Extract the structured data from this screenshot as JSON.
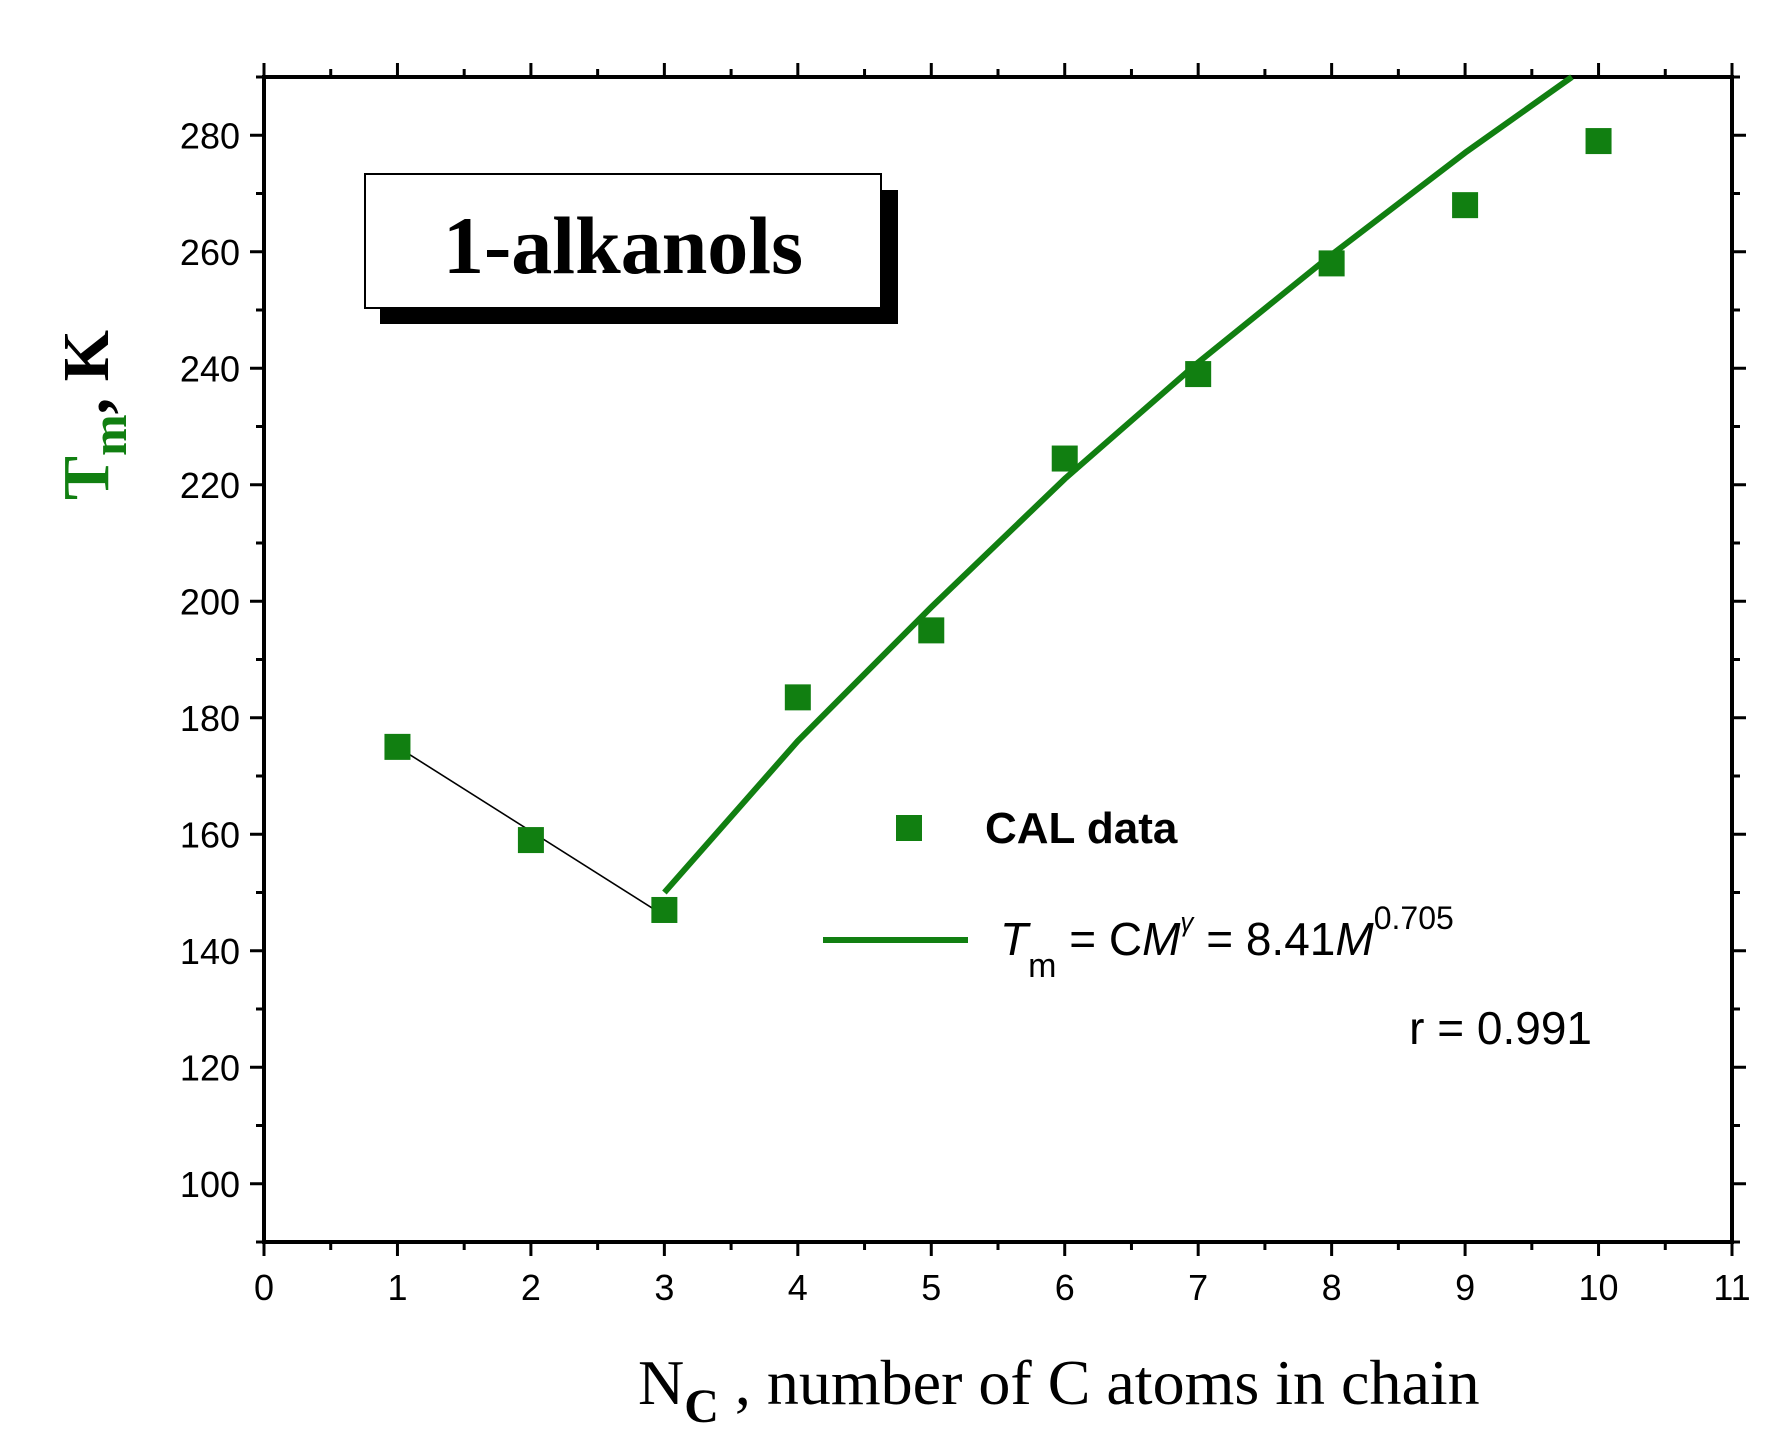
{
  "chart_data": {
    "type": "scatter",
    "title_box": "1-alkanols",
    "xlabel": {
      "main": "N",
      "sub": "C",
      "rest": " , number of C atoms in chain"
    },
    "ylabel": {
      "main": "T",
      "sub": "m",
      "rest": ", K"
    },
    "xlim": [
      0,
      11
    ],
    "ylim": [
      90,
      290
    ],
    "x_ticks": [
      0,
      1,
      2,
      3,
      4,
      5,
      6,
      7,
      8,
      9,
      10,
      11
    ],
    "y_ticks": [
      100,
      120,
      140,
      160,
      180,
      200,
      220,
      240,
      260,
      280
    ],
    "series": [
      {
        "name": "CAL data",
        "kind": "scatter",
        "marker": "square",
        "color": "#117f11",
        "points": [
          {
            "x": 1,
            "y": 175
          },
          {
            "x": 2,
            "y": 159
          },
          {
            "x": 3,
            "y": 147
          },
          {
            "x": 4,
            "y": 183.5
          },
          {
            "x": 5,
            "y": 195
          },
          {
            "x": 6,
            "y": 224.5
          },
          {
            "x": 7,
            "y": 239
          },
          {
            "x": 8,
            "y": 258
          },
          {
            "x": 9,
            "y": 268
          },
          {
            "x": 10,
            "y": 279
          }
        ]
      },
      {
        "kind": "line",
        "color": "#000000",
        "points": [
          {
            "x": 1,
            "y": 175
          },
          {
            "x": 3,
            "y": 146
          }
        ]
      },
      {
        "kind": "line",
        "color": "#117f11",
        "points": [
          {
            "x": 3,
            "y": 150
          },
          {
            "x": 4,
            "y": 176
          },
          {
            "x": 5,
            "y": 199
          },
          {
            "x": 6,
            "y": 221
          },
          {
            "x": 7,
            "y": 241
          },
          {
            "x": 8,
            "y": 259.5
          },
          {
            "x": 9,
            "y": 277
          },
          {
            "x": 9.8,
            "y": 290
          }
        ]
      }
    ],
    "legend": {
      "placement": "lower-right",
      "scatter_label": "CAL data",
      "line_label": {
        "T": "T",
        "T_sub": "m",
        "eq1": " = C",
        "M1": "M",
        "gamma": "γ",
        "eq2": " = 8.41",
        "M2": "M",
        "exponent": "0.705"
      },
      "r_label": "r = 0.991"
    },
    "grid": false
  }
}
